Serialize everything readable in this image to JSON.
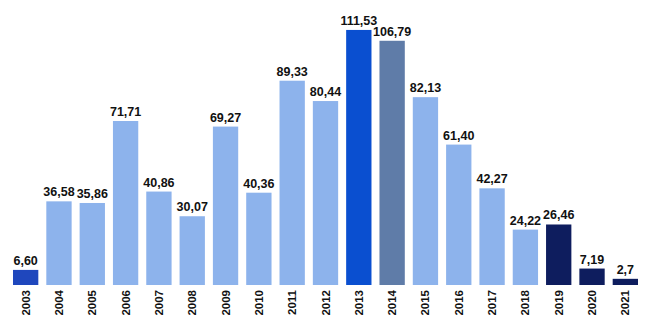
{
  "chart_data": {
    "type": "bar",
    "categories": [
      "2003",
      "2004",
      "2005",
      "2006",
      "2007",
      "2008",
      "2009",
      "2010",
      "2011",
      "2012",
      "2013",
      "2014",
      "2015",
      "2016",
      "2017",
      "2018",
      "2019",
      "2020",
      "2021"
    ],
    "values": [
      6.6,
      36.58,
      35.86,
      71.71,
      40.86,
      30.07,
      69.27,
      40.36,
      89.33,
      80.44,
      111.53,
      106.79,
      82.13,
      61.4,
      42.27,
      24.22,
      26.46,
      7.19,
      2.7
    ],
    "value_labels": [
      "6,60",
      "36,58",
      "35,86",
      "71,71",
      "40,86",
      "30,07",
      "69,27",
      "40,36",
      "89,33",
      "80,44",
      "111,53",
      "106,79",
      "82,13",
      "61,40",
      "42,27",
      "24,22",
      "26,46",
      "7,19",
      "2,7"
    ],
    "colors": [
      "#1f47bd",
      "#8db3ec",
      "#8db3ec",
      "#8db3ec",
      "#8db3ec",
      "#8db3ec",
      "#8db3ec",
      "#8db3ec",
      "#8db3ec",
      "#8db3ec",
      "#0a4fd0",
      "#5f7ca8",
      "#8db3ec",
      "#8db3ec",
      "#8db3ec",
      "#8db3ec",
      "#0e1d5e",
      "#0e1d5e",
      "#0e1d5e"
    ],
    "ylim": [
      0,
      115
    ],
    "data_labels": true,
    "tick_labels": "x",
    "grid": false
  }
}
